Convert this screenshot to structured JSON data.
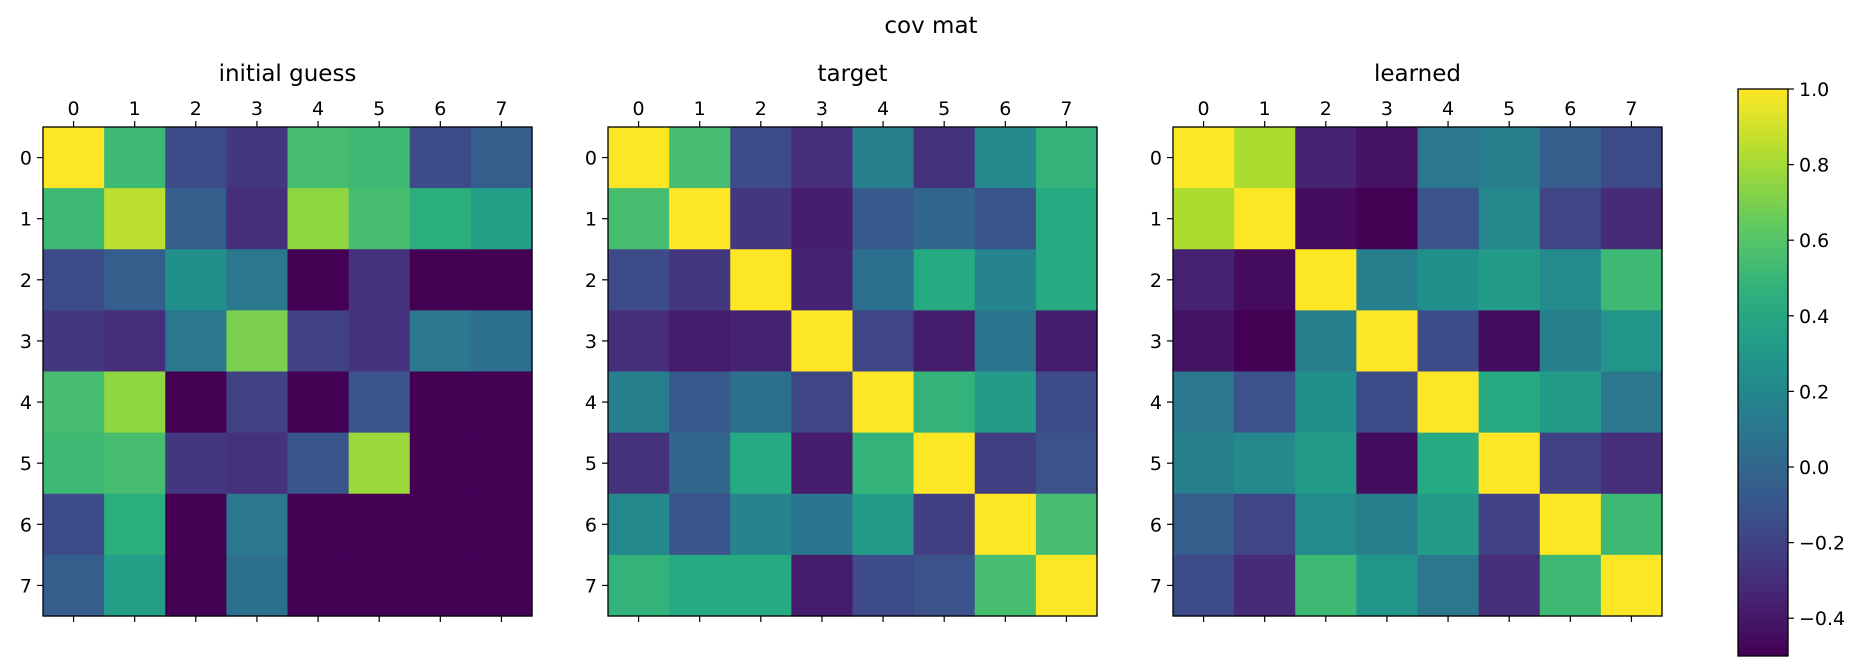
{
  "chart_data": {
    "type": "heatmap",
    "title": "cov mat",
    "colormap": "viridis",
    "vmin": -0.5,
    "vmax": 1.0,
    "colorbar": {
      "ticks": [
        1.0,
        0.8,
        0.6,
        0.4,
        0.2,
        0.0,
        -0.2,
        -0.4
      ],
      "tick_labels": [
        "1.0",
        "0.8",
        "0.6",
        "0.4",
        "0.2",
        "0.0",
        "−0.2",
        "−0.4"
      ]
    },
    "row_labels": [
      "0",
      "1",
      "2",
      "3",
      "4",
      "5",
      "6",
      "7"
    ],
    "col_labels": [
      "0",
      "1",
      "2",
      "3",
      "4",
      "5",
      "6",
      "7"
    ],
    "matrices": [
      {
        "title": "initial guess",
        "values": [
          [
            1.0,
            0.52,
            -0.15,
            -0.25,
            0.55,
            0.52,
            -0.15,
            -0.05
          ],
          [
            0.52,
            0.85,
            -0.05,
            -0.3,
            0.75,
            0.55,
            0.45,
            0.35
          ],
          [
            -0.15,
            -0.05,
            0.25,
            0.1,
            -0.5,
            -0.28,
            -0.5,
            -0.5
          ],
          [
            -0.25,
            -0.3,
            0.1,
            0.7,
            -0.2,
            -0.28,
            0.1,
            0.05
          ],
          [
            0.55,
            0.75,
            -0.5,
            -0.2,
            -0.5,
            -0.1,
            -0.5,
            -0.5
          ],
          [
            0.52,
            0.55,
            -0.25,
            -0.28,
            -0.1,
            0.78,
            -0.5,
            -0.5
          ],
          [
            -0.15,
            0.45,
            -0.5,
            0.1,
            -0.5,
            -0.5,
            -0.5,
            -0.5
          ],
          [
            -0.05,
            0.35,
            -0.5,
            0.05,
            -0.5,
            -0.5,
            -0.5,
            -0.5
          ]
        ]
      },
      {
        "title": "target",
        "values": [
          [
            1.0,
            0.55,
            -0.15,
            -0.3,
            0.15,
            -0.28,
            0.2,
            0.48
          ],
          [
            0.55,
            1.0,
            -0.25,
            -0.38,
            -0.08,
            0.0,
            -0.1,
            0.42
          ],
          [
            -0.15,
            -0.25,
            1.0,
            -0.35,
            0.05,
            0.42,
            0.18,
            0.42
          ],
          [
            -0.3,
            -0.38,
            -0.35,
            1.0,
            -0.18,
            -0.38,
            0.08,
            -0.38
          ],
          [
            0.15,
            -0.08,
            0.05,
            -0.18,
            1.0,
            0.48,
            0.32,
            -0.15
          ],
          [
            -0.28,
            0.0,
            0.42,
            -0.38,
            0.48,
            1.0,
            -0.22,
            -0.12
          ],
          [
            0.2,
            -0.1,
            0.18,
            0.08,
            0.32,
            -0.22,
            1.0,
            0.55
          ],
          [
            0.48,
            0.42,
            0.42,
            -0.38,
            -0.15,
            -0.12,
            0.55,
            1.0
          ]
        ]
      },
      {
        "title": "learned",
        "values": [
          [
            1.0,
            0.82,
            -0.35,
            -0.42,
            0.1,
            0.15,
            -0.05,
            -0.15
          ],
          [
            0.82,
            1.0,
            -0.45,
            -0.5,
            -0.12,
            0.2,
            -0.18,
            -0.32
          ],
          [
            -0.35,
            -0.45,
            1.0,
            0.15,
            0.25,
            0.32,
            0.22,
            0.52
          ],
          [
            -0.42,
            -0.5,
            0.15,
            1.0,
            -0.15,
            -0.45,
            0.15,
            0.28
          ],
          [
            0.1,
            -0.12,
            0.25,
            -0.15,
            1.0,
            0.42,
            0.32,
            0.1
          ],
          [
            0.15,
            0.2,
            0.32,
            -0.45,
            0.42,
            1.0,
            -0.2,
            -0.3
          ],
          [
            -0.05,
            -0.18,
            0.22,
            0.15,
            0.32,
            -0.2,
            1.0,
            0.52
          ],
          [
            -0.15,
            -0.32,
            0.52,
            0.28,
            0.1,
            -0.3,
            0.52,
            1.0
          ]
        ]
      }
    ]
  }
}
